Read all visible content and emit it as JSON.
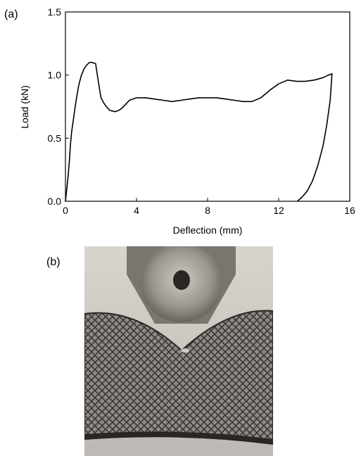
{
  "panel_a_label": "(a)",
  "panel_b_label": "(b)",
  "chart_data": {
    "type": "line",
    "title": "",
    "xlabel": "Deflection (mm)",
    "ylabel": "Load (kN)",
    "xlim": [
      0,
      16
    ],
    "ylim": [
      0,
      1.5
    ],
    "x_ticks": [
      0,
      4,
      8,
      12,
      16
    ],
    "x_tick_labels": [
      "0",
      "4",
      "8",
      "12",
      "16"
    ],
    "y_ticks": [
      0.0,
      0.5,
      1.0,
      1.5
    ],
    "y_tick_labels": [
      "0.0",
      "0.5",
      "1.0",
      "1.5"
    ],
    "grid": false,
    "legend": "none",
    "line_color": "#000000",
    "series": [
      {
        "x": [
          0.0,
          0.1,
          0.15,
          0.22,
          0.28,
          0.35,
          0.42,
          0.5,
          0.6,
          0.75,
          0.9,
          1.05,
          1.2,
          1.35,
          1.5,
          1.7,
          1.85,
          2.0,
          2.15,
          2.3,
          2.5,
          2.8,
          3.0,
          3.2,
          3.4,
          3.6,
          3.8,
          4.0,
          4.5,
          5.0,
          5.5,
          6.0,
          6.5,
          7.0,
          7.5,
          8.0,
          8.5,
          9.0,
          9.5,
          10.0,
          10.5,
          11.0,
          11.5,
          12.0,
          12.5,
          13.0,
          13.5,
          14.0,
          14.5,
          14.8,
          15.0,
          14.9,
          14.7,
          14.5,
          14.2,
          13.9,
          13.6,
          13.3,
          13.05
        ],
        "y": [
          0.0,
          0.13,
          0.2,
          0.32,
          0.45,
          0.55,
          0.62,
          0.7,
          0.8,
          0.92,
          1.0,
          1.05,
          1.08,
          1.1,
          1.1,
          1.09,
          0.95,
          0.82,
          0.78,
          0.75,
          0.72,
          0.71,
          0.72,
          0.74,
          0.77,
          0.8,
          0.81,
          0.82,
          0.82,
          0.81,
          0.8,
          0.79,
          0.8,
          0.81,
          0.82,
          0.82,
          0.82,
          0.81,
          0.8,
          0.79,
          0.79,
          0.82,
          0.88,
          0.93,
          0.96,
          0.95,
          0.95,
          0.96,
          0.98,
          1.0,
          1.01,
          0.8,
          0.6,
          0.44,
          0.28,
          0.16,
          0.08,
          0.03,
          0.0
        ]
      }
    ]
  },
  "photo": {
    "description_icon": "lattice-beam-photo",
    "colors": {
      "background_top": "#d9d4cd",
      "background_bottom": "#bdb8b3",
      "lattice_dark": "#3a3633",
      "lattice_light": "#8e8a86",
      "indenter": "#6f6b66"
    }
  }
}
